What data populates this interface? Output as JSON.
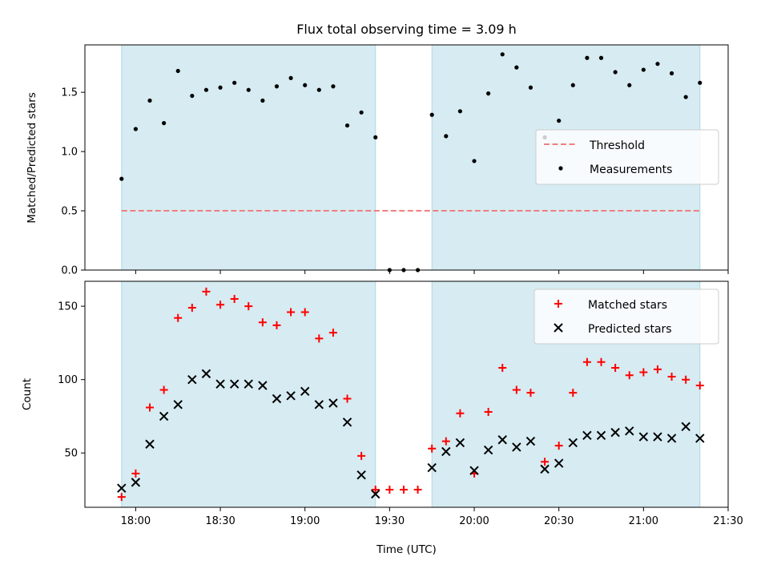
{
  "chart_data": [
    {
      "type": "scatter",
      "title": "Flux total observing time = 3.09 h",
      "xlabel": "",
      "ylabel": "Matched/Predicted stars",
      "xlim": [
        "17:42",
        "21:30"
      ],
      "ylim": [
        0,
        1.9
      ],
      "yticks": [
        "0.0",
        "0.5",
        "1.0",
        "1.5"
      ],
      "grid": false,
      "legend_position": "center-right",
      "shaded_intervals": [
        [
          "17:55",
          "19:25"
        ],
        [
          "19:45",
          "21:20"
        ]
      ],
      "threshold": {
        "name": "Threshold",
        "value": 0.5,
        "x_range": [
          "17:55",
          "21:20"
        ],
        "color": "#f08080"
      },
      "series": [
        {
          "name": "Measurements",
          "x": [
            "17:55",
            "18:00",
            "18:05",
            "18:10",
            "18:15",
            "18:20",
            "18:25",
            "18:30",
            "18:35",
            "18:40",
            "18:45",
            "18:50",
            "18:55",
            "19:00",
            "19:05",
            "19:10",
            "19:15",
            "19:20",
            "19:25",
            "19:30",
            "19:35",
            "19:40",
            "19:45",
            "19:50",
            "19:55",
            "20:00",
            "20:05",
            "20:10",
            "20:15",
            "20:20",
            "20:25",
            "20:30",
            "20:35",
            "20:40",
            "20:45",
            "20:50",
            "20:55",
            "21:00",
            "21:05",
            "21:10",
            "21:15",
            "21:20"
          ],
          "values": [
            0.77,
            1.19,
            1.43,
            1.24,
            1.68,
            1.47,
            1.52,
            1.54,
            1.58,
            1.52,
            1.43,
            1.55,
            1.62,
            1.56,
            1.52,
            1.55,
            1.22,
            1.33,
            1.12,
            0.0,
            0.0,
            0.0,
            1.31,
            1.13,
            1.34,
            0.92,
            1.49,
            1.82,
            1.71,
            1.54,
            1.12,
            1.26,
            1.56,
            1.79,
            1.79,
            1.67,
            1.56,
            1.69,
            1.74,
            1.66,
            1.46,
            1.58
          ]
        }
      ]
    },
    {
      "type": "scatter",
      "xlabel": "Time (UTC)",
      "ylabel": "Count",
      "xlim": [
        "17:42",
        "21:30"
      ],
      "ylim": [
        13,
        167
      ],
      "xticks": [
        "18:00",
        "18:30",
        "19:00",
        "19:30",
        "20:00",
        "20:30",
        "21:00",
        "21:30"
      ],
      "yticks": [
        "50",
        "100",
        "150"
      ],
      "grid": false,
      "legend_position": "top-right",
      "shaded_intervals": [
        [
          "17:55",
          "19:25"
        ],
        [
          "19:45",
          "21:20"
        ]
      ],
      "series": [
        {
          "name": "Matched stars",
          "marker": "plus",
          "color": "#ff0000",
          "x": [
            "17:55",
            "18:00",
            "18:05",
            "18:10",
            "18:15",
            "18:20",
            "18:25",
            "18:30",
            "18:35",
            "18:40",
            "18:45",
            "18:50",
            "18:55",
            "19:00",
            "19:05",
            "19:10",
            "19:15",
            "19:20",
            "19:25",
            "19:30",
            "19:35",
            "19:40",
            "19:45",
            "19:50",
            "19:55",
            "20:00",
            "20:05",
            "20:10",
            "20:15",
            "20:20",
            "20:25",
            "20:30",
            "20:35",
            "20:40",
            "20:45",
            "20:50",
            "20:55",
            "21:00",
            "21:05",
            "21:10",
            "21:15",
            "21:20"
          ],
          "values": [
            20,
            36,
            81,
            93,
            142,
            149,
            160,
            151,
            155,
            150,
            139,
            137,
            146,
            146,
            128,
            132,
            87,
            48,
            25,
            25,
            25,
            25,
            53,
            58,
            77,
            36,
            78,
            108,
            93,
            91,
            44,
            55,
            91,
            112,
            112,
            108,
            103,
            105,
            107,
            102,
            100,
            96
          ]
        },
        {
          "name": "Predicted stars",
          "marker": "x",
          "color": "#000000",
          "x": [
            "17:55",
            "18:00",
            "18:05",
            "18:10",
            "18:15",
            "18:20",
            "18:25",
            "18:30",
            "18:35",
            "18:40",
            "18:45",
            "18:50",
            "18:55",
            "19:00",
            "19:05",
            "19:10",
            "19:15",
            "19:20",
            "19:25",
            "19:45",
            "19:50",
            "19:55",
            "20:00",
            "20:05",
            "20:10",
            "20:15",
            "20:20",
            "20:25",
            "20:30",
            "20:35",
            "20:40",
            "20:45",
            "20:50",
            "20:55",
            "21:00",
            "21:05",
            "21:10",
            "21:15",
            "21:20"
          ],
          "values": [
            26,
            30,
            56,
            75,
            83,
            100,
            104,
            97,
            97,
            97,
            96,
            87,
            89,
            92,
            83,
            84,
            71,
            35,
            22,
            40,
            51,
            57,
            38,
            52,
            59,
            54,
            58,
            39,
            43,
            57,
            62,
            62,
            64,
            65,
            61,
            61,
            60,
            68,
            60
          ]
        }
      ]
    }
  ]
}
